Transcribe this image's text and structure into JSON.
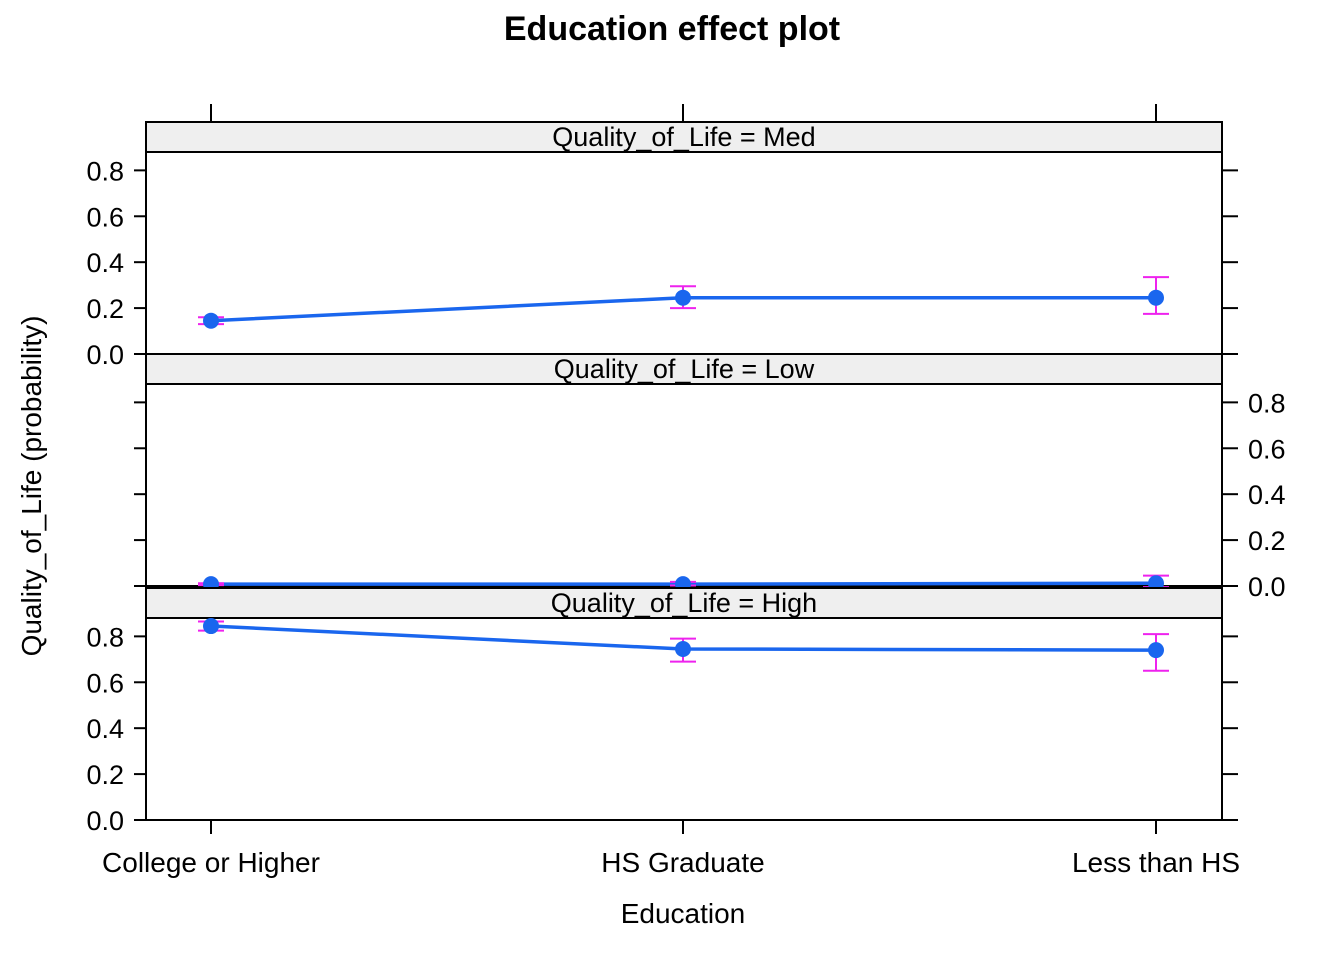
{
  "chart_data": {
    "type": "line",
    "title": "Education effect plot",
    "xlabel": "Education",
    "ylabel": "Quality_of_Life (probability)",
    "categories": [
      "College or Higher",
      "HS Graduate",
      "Less than HS"
    ],
    "ylim": [
      0,
      0.88
    ],
    "yticks": [
      "0.0",
      "0.2",
      "0.4",
      "0.6",
      "0.8"
    ],
    "line_color": "#1a66ee",
    "point_color": "#1a66ee",
    "errorbar_color": "#ee22ee",
    "strip_fill": "#efefef",
    "panels": [
      {
        "strip": "Quality_of_Life = Med",
        "values": [
          0.145,
          0.245,
          0.245
        ],
        "lower": [
          0.13,
          0.2,
          0.175
        ],
        "upper": [
          0.16,
          0.295,
          0.335
        ]
      },
      {
        "strip": "Quality_of_Life = Low",
        "values": [
          0.008,
          0.008,
          0.012
        ],
        "lower": [
          0.004,
          0.002,
          -0.005
        ],
        "upper": [
          0.012,
          0.018,
          0.045
        ]
      },
      {
        "strip": "Quality_of_Life = High",
        "values": [
          0.845,
          0.745,
          0.74
        ],
        "lower": [
          0.825,
          0.69,
          0.65
        ],
        "upper": [
          0.865,
          0.79,
          0.81
        ]
      }
    ]
  }
}
